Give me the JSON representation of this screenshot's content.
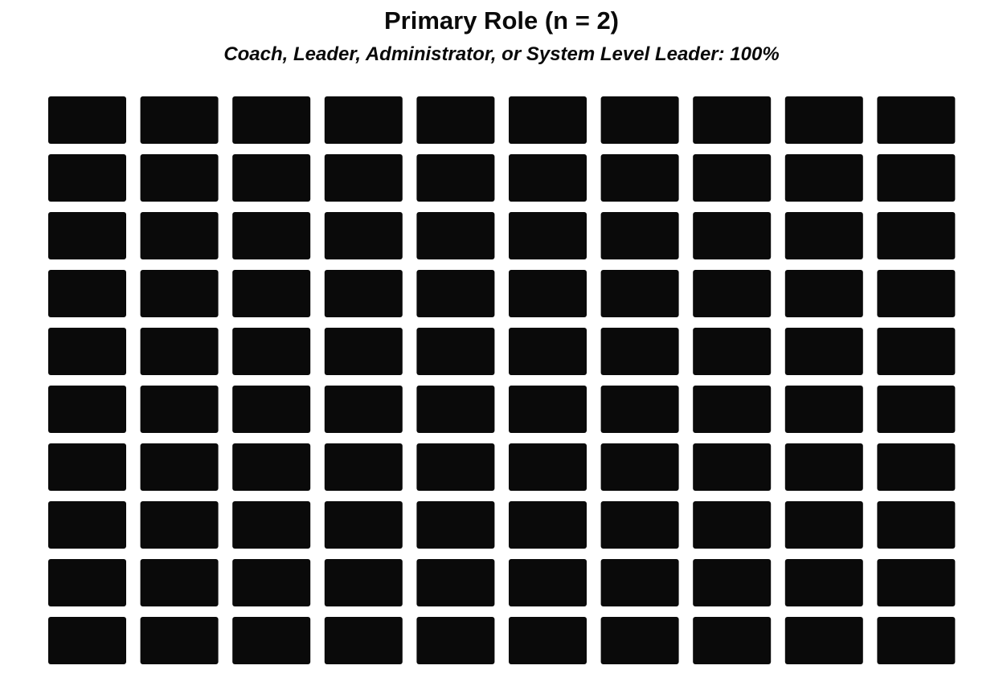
{
  "chart_data": {
    "type": "waffle",
    "title": "Primary Role (n = 2)",
    "subtitle": "Coach, Leader, Administrator, or System Level Leader: 100%",
    "rows": 10,
    "columns": 10,
    "categories": [
      {
        "name": "Coach, Leader, Administrator, or System Level Leader",
        "percent": 100,
        "color": "#0a0a0a"
      }
    ]
  }
}
